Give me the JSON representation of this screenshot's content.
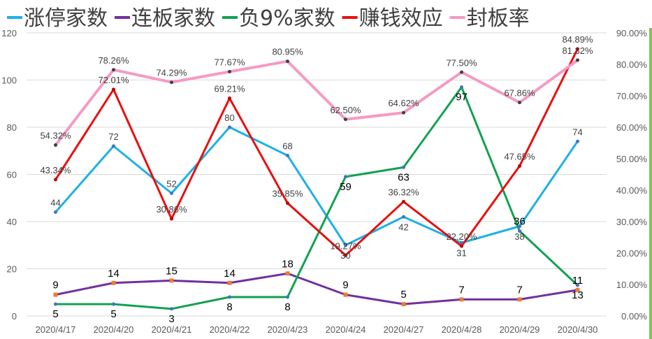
{
  "chart_data": {
    "type": "line",
    "categories": [
      "2020/4/17",
      "2020/4/20",
      "2020/4/21",
      "2020/4/22",
      "2020/4/23",
      "2020/4/24",
      "2020/4/27",
      "2020/4/28",
      "2020/4/29",
      "2020/4/30"
    ],
    "y_left": {
      "min": 0,
      "max": 120,
      "step": 20,
      "ticks": [
        "0",
        "20",
        "40",
        "60",
        "80",
        "100",
        "120"
      ]
    },
    "y_right": {
      "min": 0,
      "max": 90,
      "step": 10,
      "ticks": [
        "0.00%",
        "10.00%",
        "20.00%",
        "30.00%",
        "40.00%",
        "50.00%",
        "60.00%",
        "70.00%",
        "80.00%",
        "90.00%"
      ]
    },
    "grid": true,
    "legend_position": "top",
    "series": [
      {
        "name": "涨停家数",
        "axis": "left",
        "color": "#1fb0e6",
        "values": [
          44,
          72,
          52,
          80,
          68,
          30,
          42,
          31,
          38,
          74
        ],
        "labels": [
          "44",
          "72",
          "52",
          "80",
          "68",
          "30",
          "42",
          "31",
          "38",
          "74"
        ]
      },
      {
        "name": "连板家数",
        "axis": "left",
        "color": "#7030a0",
        "marker_color": "#ed7d31",
        "values": [
          9,
          14,
          15,
          14,
          18,
          9,
          5,
          7,
          7,
          11
        ],
        "labels": [
          "9",
          "14",
          "15",
          "14",
          "18",
          "9",
          "5",
          "7",
          "7",
          "11"
        ]
      },
      {
        "name": "负9%家数",
        "axis": "left",
        "color": "#12a152",
        "values": [
          5,
          5,
          3,
          8,
          8,
          59,
          63,
          97,
          36,
          13
        ],
        "labels": [
          "5",
          "5",
          "3",
          "8",
          "8",
          "59",
          "63",
          "97",
          "36",
          "13"
        ]
      },
      {
        "name": "赚钱效应",
        "axis": "right",
        "color": "#e90f0f",
        "values": [
          43.34,
          72.01,
          30.86,
          69.21,
          35.85,
          19.27,
          36.32,
          22.2,
          47.65,
          84.89
        ],
        "labels": [
          "43.34%",
          "72.01%",
          "30.86%",
          "69.21%",
          "35.85%",
          "19.27%",
          "36.32%",
          "22.20%",
          "47.65%",
          "84.89%"
        ]
      },
      {
        "name": "封板率",
        "axis": "right",
        "color": "#f59ac4",
        "values": [
          54.32,
          78.26,
          74.29,
          77.67,
          80.95,
          62.5,
          64.62,
          77.5,
          67.86,
          81.32
        ],
        "labels": [
          "54.32%",
          "78.26%",
          "74.29%",
          "77.67%",
          "80.95%",
          "62.50%",
          "64.62%",
          "77.50%",
          "67.86%",
          "81.32%"
        ]
      }
    ]
  }
}
